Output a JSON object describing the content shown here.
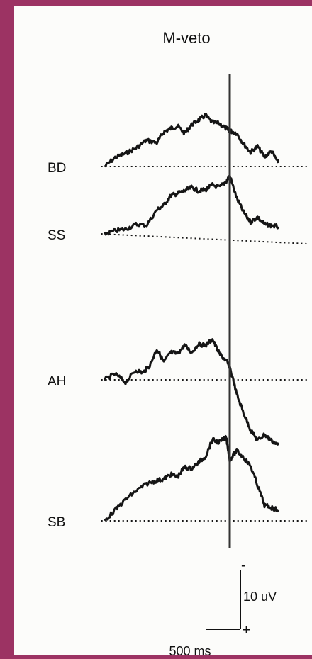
{
  "colors": {
    "background": "#9c3363",
    "panel": "#fcfcfa",
    "ink": "#151515"
  },
  "chart_data": {
    "type": "line",
    "title": "M-veto",
    "series": [
      {
        "name": "BD",
        "baseline": 0,
        "values": [
          [
            -1800,
            0
          ],
          [
            -1650,
            1.5
          ],
          [
            -1500,
            2.2
          ],
          [
            -1350,
            3.1
          ],
          [
            -1200,
            4.4
          ],
          [
            -1050,
            4.0
          ],
          [
            -950,
            5.8
          ],
          [
            -850,
            6.4
          ],
          [
            -750,
            6.8
          ],
          [
            -650,
            5.6
          ],
          [
            -550,
            7.0
          ],
          [
            -450,
            7.8
          ],
          [
            -350,
            8.6
          ],
          [
            -250,
            7.4
          ],
          [
            -150,
            7.2
          ],
          [
            -50,
            6.4
          ],
          [
            0,
            6.0
          ],
          [
            100,
            5.6
          ],
          [
            200,
            3.8
          ],
          [
            300,
            2.4
          ],
          [
            400,
            3.4
          ],
          [
            500,
            1.6
          ],
          [
            600,
            2.6
          ],
          [
            700,
            0.6
          ]
        ]
      },
      {
        "name": "SS",
        "baseline": 0,
        "values": [
          [
            -1800,
            0
          ],
          [
            -1650,
            0.5
          ],
          [
            -1500,
            0.8
          ],
          [
            -1350,
            1.6
          ],
          [
            -1200,
            1.4
          ],
          [
            -1050,
            4.0
          ],
          [
            -950,
            4.8
          ],
          [
            -850,
            6.4
          ],
          [
            -750,
            6.8
          ],
          [
            -650,
            7.2
          ],
          [
            -550,
            7.8
          ],
          [
            -450,
            7.2
          ],
          [
            -350,
            7.4
          ],
          [
            -250,
            8.2
          ],
          [
            -150,
            7.8
          ],
          [
            -50,
            8.8
          ],
          [
            0,
            9.8
          ],
          [
            100,
            6.0
          ],
          [
            200,
            3.6
          ],
          [
            300,
            2.0
          ],
          [
            400,
            2.8
          ],
          [
            500,
            1.6
          ],
          [
            600,
            1.4
          ],
          [
            700,
            1.2
          ]
        ]
      },
      {
        "name": "AH",
        "baseline": 0,
        "values": [
          [
            -1800,
            0
          ],
          [
            -1650,
            1.0
          ],
          [
            -1500,
            -0.4
          ],
          [
            -1350,
            1.6
          ],
          [
            -1250,
            1.2
          ],
          [
            -1150,
            2.4
          ],
          [
            -1050,
            5.2
          ],
          [
            -950,
            3.0
          ],
          [
            -850,
            4.6
          ],
          [
            -750,
            4.4
          ],
          [
            -650,
            5.8
          ],
          [
            -550,
            4.6
          ],
          [
            -450,
            6.0
          ],
          [
            -350,
            5.8
          ],
          [
            -250,
            6.8
          ],
          [
            -150,
            4.4
          ],
          [
            -50,
            3.2
          ],
          [
            0,
            2.2
          ],
          [
            100,
            -2.4
          ],
          [
            200,
            -5.6
          ],
          [
            300,
            -8.4
          ],
          [
            400,
            -10.2
          ],
          [
            500,
            -9.2
          ],
          [
            600,
            -10.2
          ],
          [
            700,
            -11.0
          ]
        ]
      },
      {
        "name": "SB",
        "baseline": 0,
        "values": [
          [
            -1800,
            0
          ],
          [
            -1650,
            1.8
          ],
          [
            -1500,
            3.6
          ],
          [
            -1350,
            5.0
          ],
          [
            -1200,
            6.2
          ],
          [
            -1050,
            6.8
          ],
          [
            -950,
            7.0
          ],
          [
            -850,
            7.8
          ],
          [
            -750,
            7.4
          ],
          [
            -650,
            9.0
          ],
          [
            -550,
            8.8
          ],
          [
            -450,
            9.8
          ],
          [
            -350,
            10.8
          ],
          [
            -250,
            13.6
          ],
          [
            -150,
            13.2
          ],
          [
            -50,
            14.0
          ],
          [
            0,
            10.2
          ],
          [
            100,
            11.8
          ],
          [
            200,
            10.6
          ],
          [
            300,
            9.2
          ],
          [
            400,
            6.0
          ],
          [
            500,
            2.6
          ],
          [
            600,
            2.2
          ],
          [
            700,
            1.8
          ]
        ]
      }
    ],
    "event_marker_ms": 0,
    "scale_bar": {
      "time": "500 ms",
      "amplitude": "10 uV",
      "neg_label": "-",
      "pos_label": "+"
    },
    "grid": false,
    "legend": "none"
  }
}
